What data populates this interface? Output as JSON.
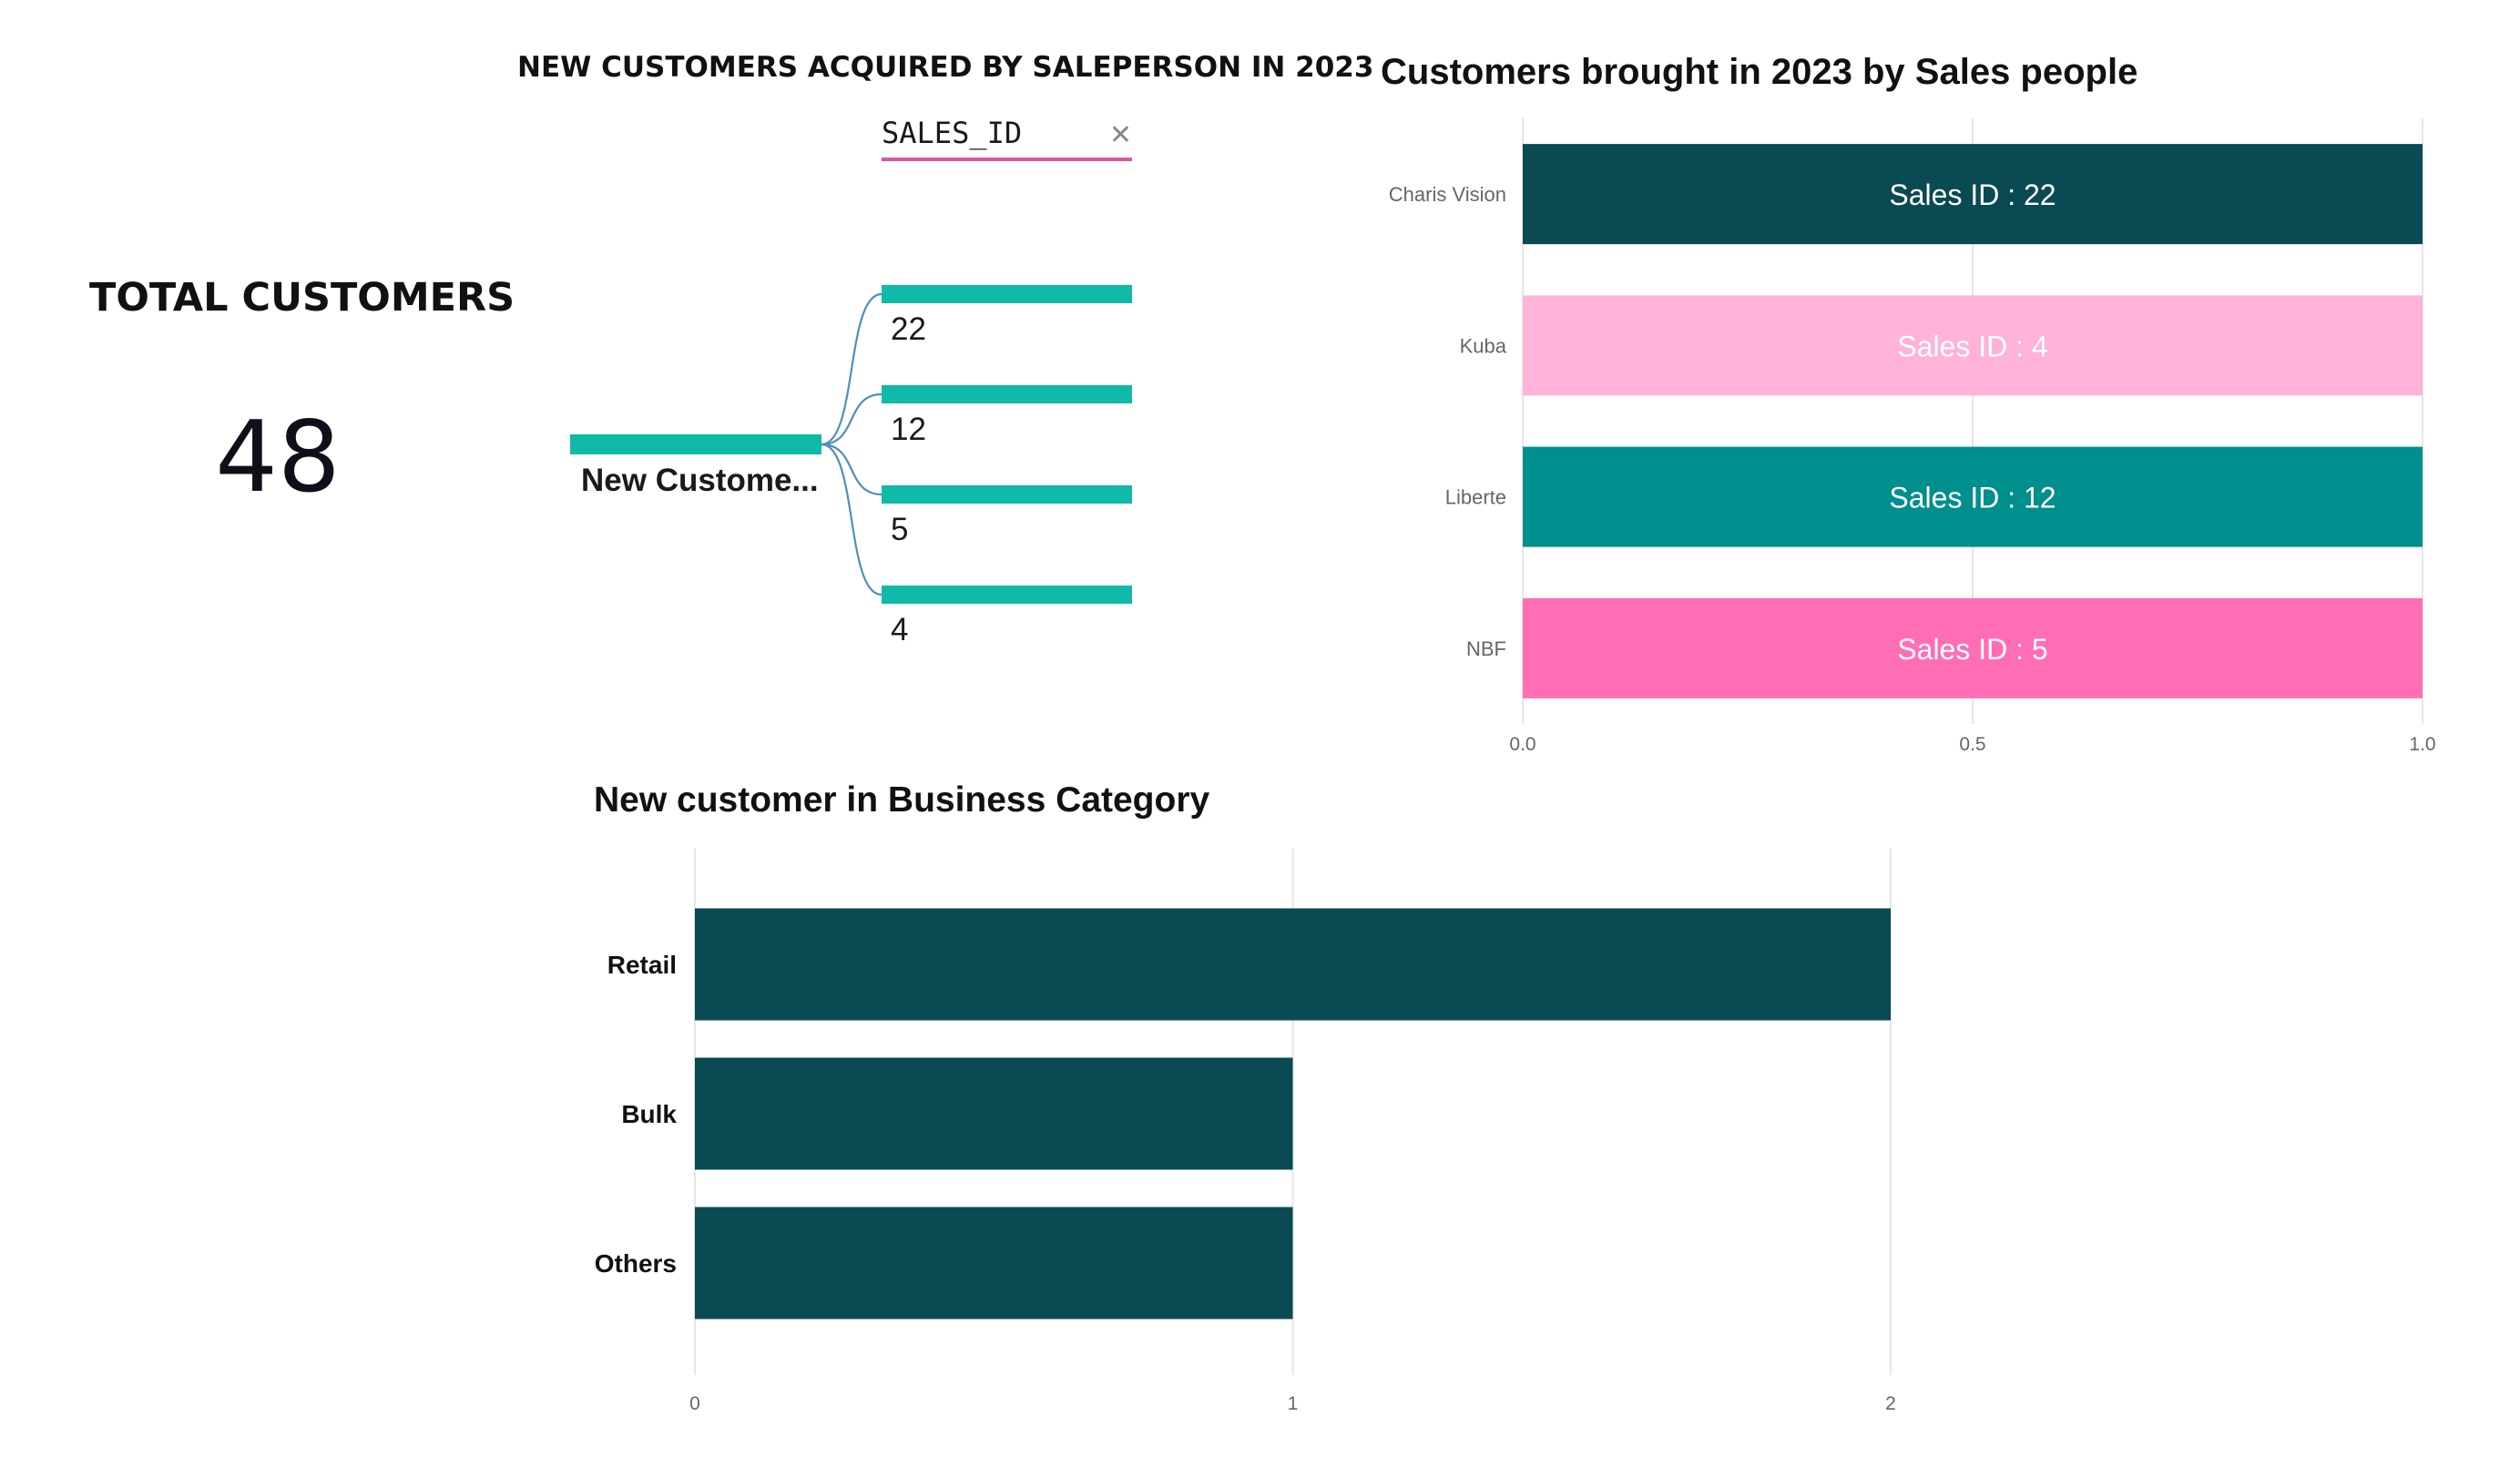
{
  "kpi": {
    "title": "TOTAL CUSTOMERS",
    "value": "48"
  },
  "decomposition": {
    "title": "NEW CUSTOMERS ACQUIRED BY SALEPERSON IN 2023",
    "filter_label": "SALES_ID",
    "root_label": "New Custome...",
    "node_color": "#11b9a8",
    "link_color": "#4f8fba",
    "accent_color": "#e0569e"
  },
  "chart_data": [
    {
      "type": "bar",
      "orientation": "horizontal",
      "title": "Customers brought in 2023 by Sales people",
      "xlabel": "",
      "ylabel": "",
      "categories": [
        "Charis Vision",
        "Kuba",
        "Liberte",
        "NBF"
      ],
      "values": [
        1,
        1,
        1,
        1
      ],
      "data_labels": [
        "Sales ID : 22",
        "Sales ID : 4",
        "Sales ID : 12",
        "Sales ID : 5"
      ],
      "colors": [
        "#0a4a52",
        "#ffb3d9",
        "#008f8c",
        "#ff6eb4"
      ],
      "xlim": [
        0,
        1
      ],
      "ticks": [
        "0.0",
        "0.5",
        "1.0"
      ],
      "grid": true,
      "legend": "none"
    },
    {
      "type": "bar",
      "orientation": "horizontal",
      "title": "New customer in Business Category",
      "xlabel": "",
      "ylabel": "",
      "categories": [
        "Retail",
        "Bulk",
        "Others"
      ],
      "values": [
        2,
        1,
        1
      ],
      "colors": [
        "#0a4a52"
      ],
      "xlim": [
        0,
        2
      ],
      "ticks": [
        "0",
        "1",
        "2"
      ],
      "grid": true,
      "legend": "none"
    },
    {
      "type": "tree",
      "title": "NEW CUSTOMERS ACQUIRED BY SALEPERSON IN 2023",
      "root": "New Custome...",
      "filter": "SALES_ID",
      "categories": [
        "22",
        "12",
        "5",
        "4"
      ]
    }
  ]
}
